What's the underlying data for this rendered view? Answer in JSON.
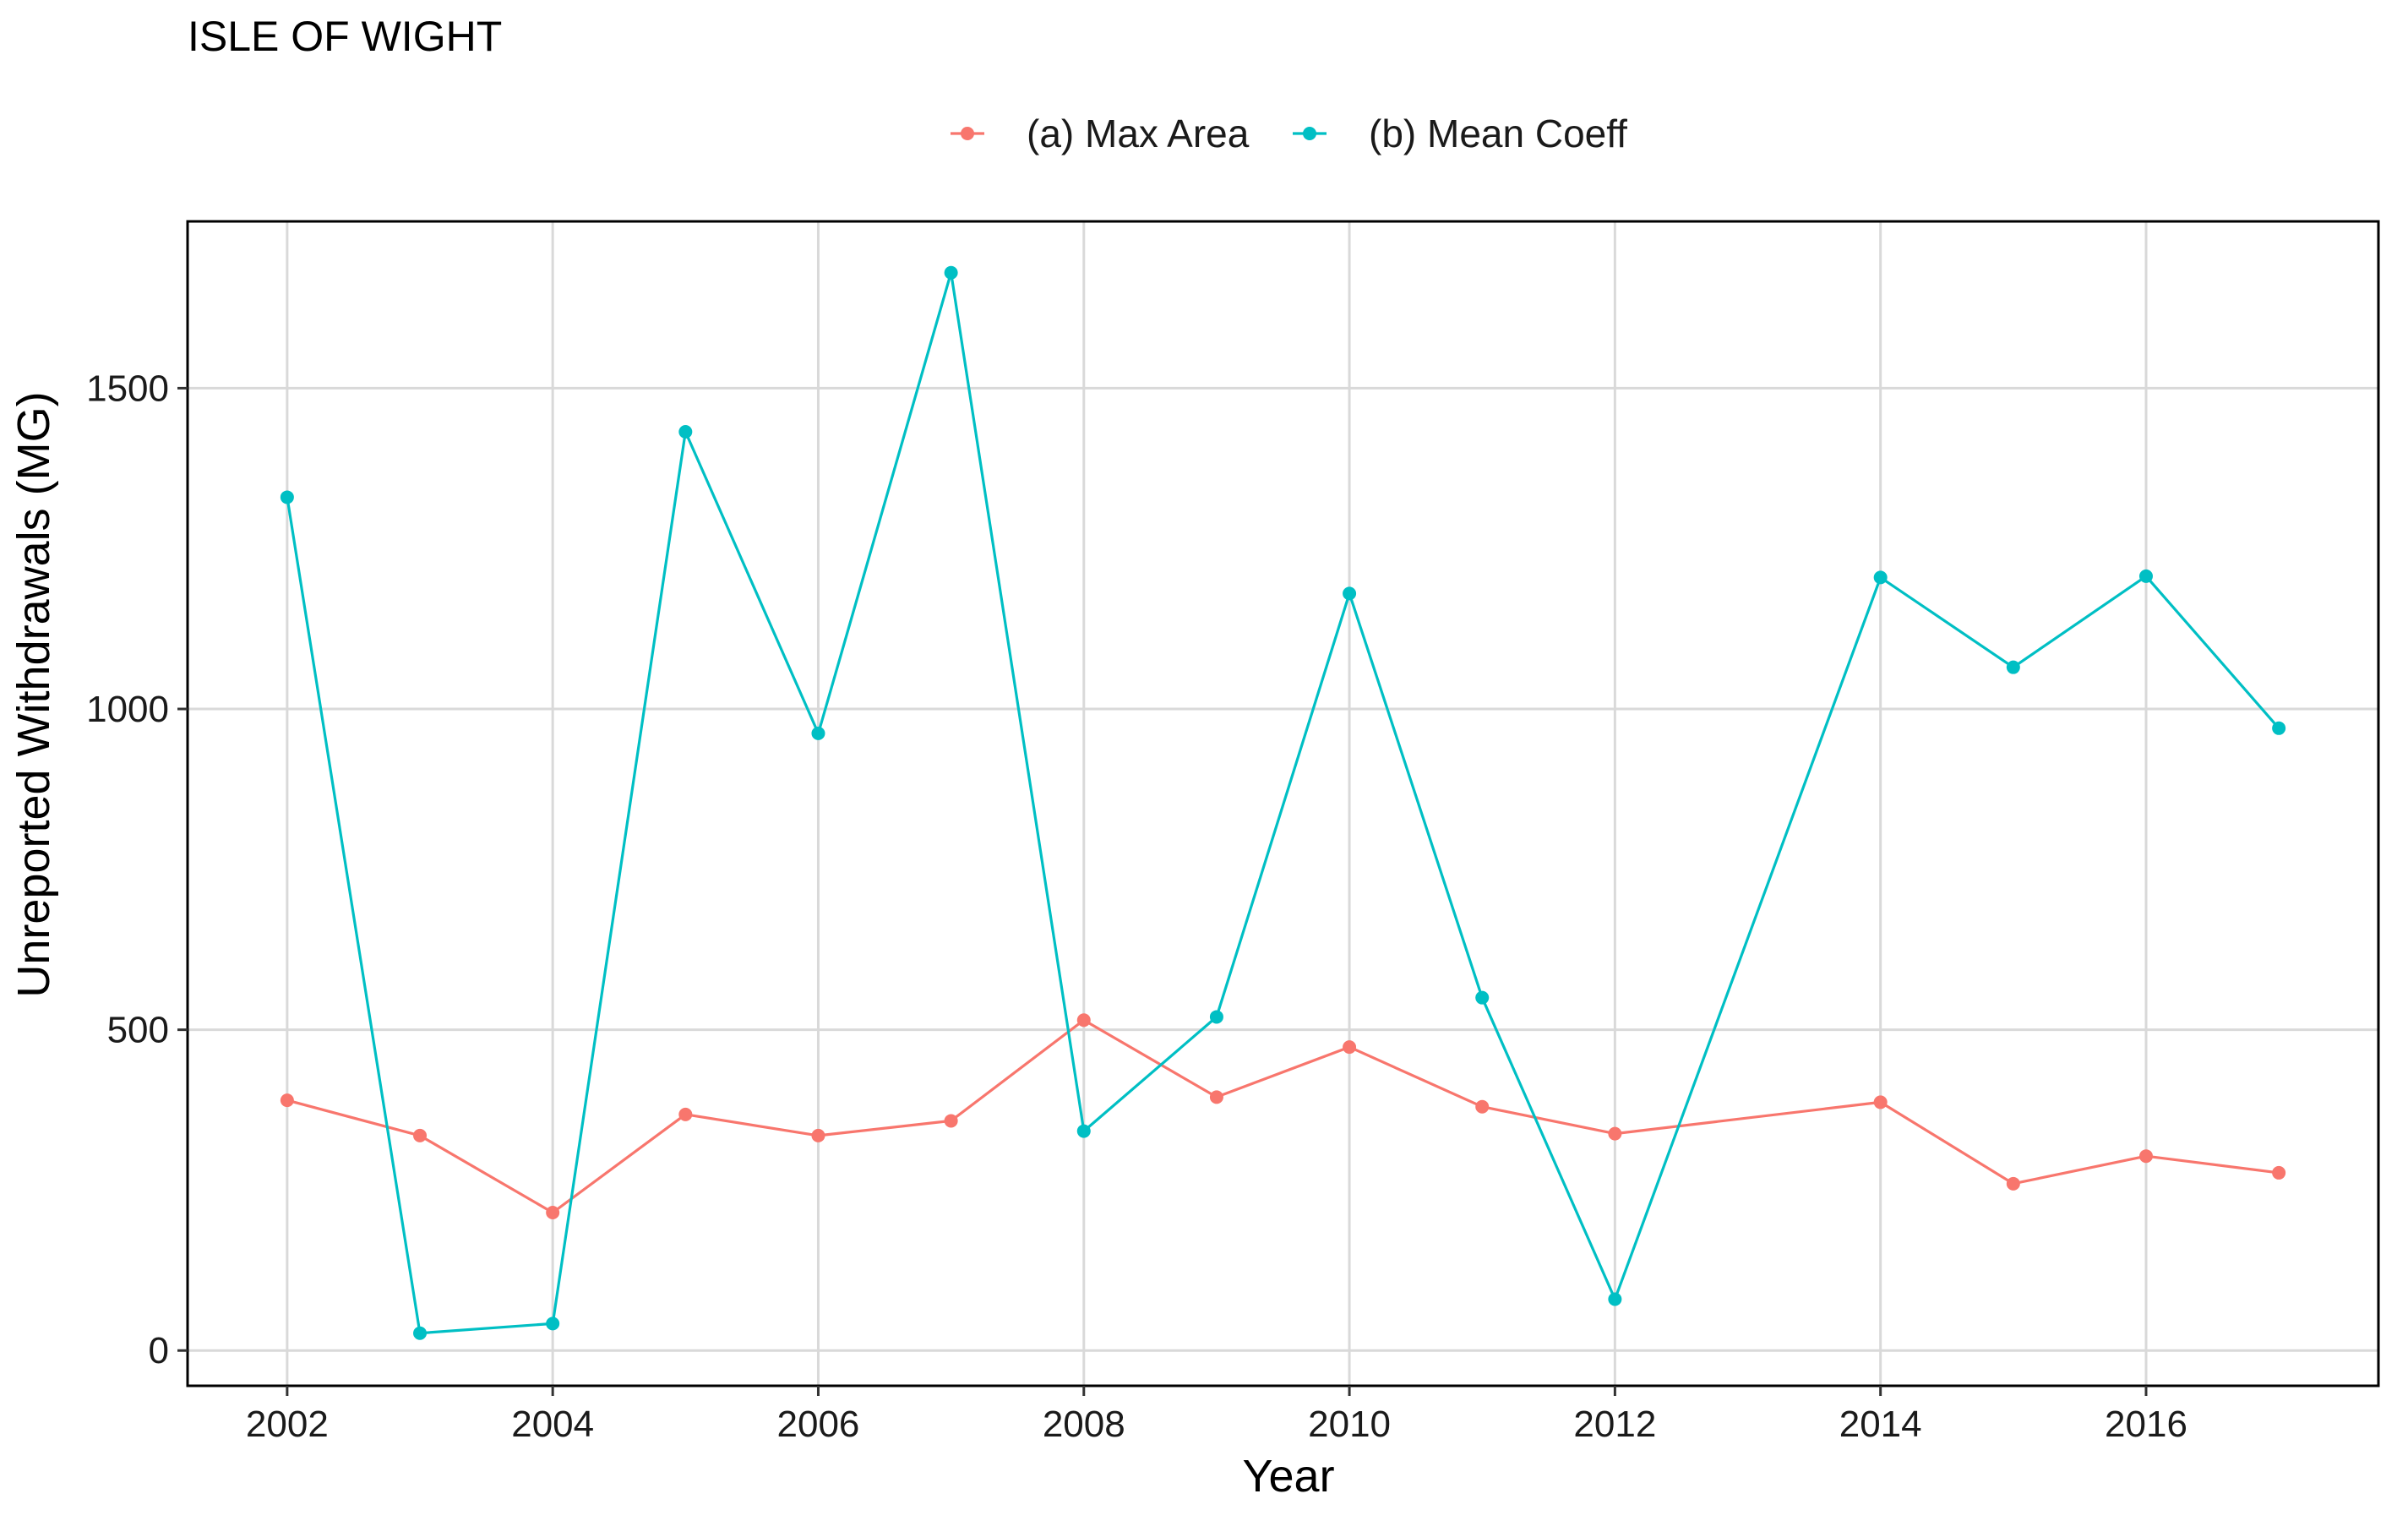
{
  "chart_data": {
    "type": "line",
    "title": "ISLE OF WIGHT",
    "xlabel": "Year",
    "ylabel": "Unreported Withdrawals (MG)",
    "xlim": [
      2001.25,
      2017.75
    ],
    "ylim": [
      -55,
      1760
    ],
    "x_ticks": [
      2002,
      2004,
      2006,
      2008,
      2010,
      2012,
      2014,
      2016
    ],
    "x_tick_labels": [
      "2002",
      "2004",
      "2006",
      "2008",
      "2010",
      "2012",
      "2014",
      "2016"
    ],
    "y_ticks": [
      0,
      500,
      1000,
      1500
    ],
    "y_tick_labels": [
      "0",
      "500",
      "1000",
      "1500"
    ],
    "grid": true,
    "legend_position": "top",
    "series": [
      {
        "name": "(a) Max Area",
        "color": "#F8766D",
        "x": [
          2002,
          2003,
          2004,
          2005,
          2006,
          2007,
          2008,
          2009,
          2010,
          2011,
          2012,
          2014,
          2015,
          2016,
          2017
        ],
        "values": [
          390,
          335,
          215,
          368,
          335,
          358,
          515,
          395,
          473,
          380,
          338,
          387,
          260,
          303,
          277
        ]
      },
      {
        "name": "(b) Mean Coeff",
        "color": "#00BFC4",
        "x": [
          2002,
          2003,
          2004,
          2005,
          2006,
          2007,
          2008,
          2009,
          2010,
          2011,
          2012,
          2014,
          2015,
          2016,
          2017
        ],
        "values": [
          1330,
          27,
          42,
          1432,
          962,
          1680,
          342,
          520,
          1180,
          550,
          80,
          1205,
          1065,
          1207,
          970
        ]
      }
    ]
  }
}
